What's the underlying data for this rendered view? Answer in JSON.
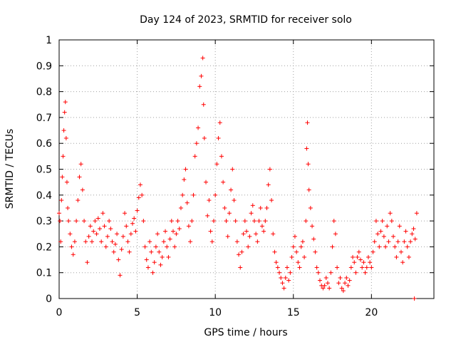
{
  "chart_data": {
    "type": "scatter",
    "title": "Day 124 of 2023, SRMTID for receiver solo",
    "xlabel": "GPS time / hours",
    "ylabel": "SRMTID / TECUs",
    "xlim": [
      0,
      24
    ],
    "ylim": [
      0,
      1
    ],
    "grid": true,
    "marker": "+",
    "marker_color": "#ff0000",
    "x_ticks": [
      {
        "value": 0,
        "label": "0"
      },
      {
        "value": 5,
        "label": "5"
      },
      {
        "value": 10,
        "label": "10"
      },
      {
        "value": 15,
        "label": "15"
      },
      {
        "value": 20,
        "label": "20"
      }
    ],
    "y_ticks": [
      {
        "value": 0,
        "label": "0"
      },
      {
        "value": 0.1,
        "label": "0.1"
      },
      {
        "value": 0.2,
        "label": "0.2"
      },
      {
        "value": 0.3,
        "label": "0.3"
      },
      {
        "value": 0.4,
        "label": "0.4"
      },
      {
        "value": 0.5,
        "label": "0.5"
      },
      {
        "value": 0.6,
        "label": "0.6"
      },
      {
        "value": 0.7,
        "label": "0.7"
      },
      {
        "value": 0.8,
        "label": "0.8"
      },
      {
        "value": 0.9,
        "label": "0.9"
      },
      {
        "value": 1,
        "label": "1"
      }
    ],
    "series": [
      {
        "name": "SRMTID",
        "points": [
          [
            0.0,
            0.33
          ],
          [
            0.05,
            0.3
          ],
          [
            0.1,
            0.22
          ],
          [
            0.15,
            0.38
          ],
          [
            0.2,
            0.47
          ],
          [
            0.25,
            0.55
          ],
          [
            0.3,
            0.65
          ],
          [
            0.35,
            0.72
          ],
          [
            0.4,
            0.76
          ],
          [
            0.45,
            0.62
          ],
          [
            0.5,
            0.45
          ],
          [
            0.55,
            0.35
          ],
          [
            0.6,
            0.3
          ],
          [
            0.7,
            0.25
          ],
          [
            0.8,
            0.2
          ],
          [
            0.9,
            0.17
          ],
          [
            1.0,
            0.22
          ],
          [
            1.1,
            0.3
          ],
          [
            1.2,
            0.38
          ],
          [
            1.3,
            0.47
          ],
          [
            1.4,
            0.52
          ],
          [
            1.5,
            0.42
          ],
          [
            1.6,
            0.3
          ],
          [
            1.7,
            0.22
          ],
          [
            1.8,
            0.14
          ],
          [
            1.9,
            0.24
          ],
          [
            2.0,
            0.28
          ],
          [
            2.1,
            0.22
          ],
          [
            2.2,
            0.26
          ],
          [
            2.3,
            0.3
          ],
          [
            2.4,
            0.25
          ],
          [
            2.5,
            0.31
          ],
          [
            2.6,
            0.27
          ],
          [
            2.7,
            0.22
          ],
          [
            2.8,
            0.33
          ],
          [
            2.9,
            0.28
          ],
          [
            3.0,
            0.2
          ],
          [
            3.1,
            0.24
          ],
          [
            3.2,
            0.3
          ],
          [
            3.3,
            0.27
          ],
          [
            3.4,
            0.22
          ],
          [
            3.5,
            0.18
          ],
          [
            3.6,
            0.21
          ],
          [
            3.7,
            0.25
          ],
          [
            3.8,
            0.15
          ],
          [
            3.9,
            0.09
          ],
          [
            4.0,
            0.19
          ],
          [
            4.1,
            0.24
          ],
          [
            4.2,
            0.33
          ],
          [
            4.3,
            0.28
          ],
          [
            4.4,
            0.22
          ],
          [
            4.5,
            0.18
          ],
          [
            4.6,
            0.25
          ],
          [
            4.7,
            0.29
          ],
          [
            4.8,
            0.31
          ],
          [
            4.9,
            0.26
          ],
          [
            5.0,
            0.34
          ],
          [
            5.1,
            0.39
          ],
          [
            5.2,
            0.44
          ],
          [
            5.3,
            0.4
          ],
          [
            5.4,
            0.3
          ],
          [
            5.5,
            0.2
          ],
          [
            5.6,
            0.15
          ],
          [
            5.7,
            0.12
          ],
          [
            5.8,
            0.22
          ],
          [
            5.9,
            0.18
          ],
          [
            6.0,
            0.1
          ],
          [
            6.1,
            0.14
          ],
          [
            6.2,
            0.2
          ],
          [
            6.3,
            0.25
          ],
          [
            6.4,
            0.18
          ],
          [
            6.5,
            0.13
          ],
          [
            6.6,
            0.16
          ],
          [
            6.7,
            0.22
          ],
          [
            6.8,
            0.26
          ],
          [
            6.9,
            0.2
          ],
          [
            7.0,
            0.16
          ],
          [
            7.1,
            0.23
          ],
          [
            7.2,
            0.3
          ],
          [
            7.3,
            0.26
          ],
          [
            7.4,
            0.2
          ],
          [
            7.5,
            0.25
          ],
          [
            7.6,
            0.3
          ],
          [
            7.7,
            0.27
          ],
          [
            7.8,
            0.35
          ],
          [
            7.9,
            0.4
          ],
          [
            8.0,
            0.46
          ],
          [
            8.1,
            0.5
          ],
          [
            8.2,
            0.37
          ],
          [
            8.3,
            0.28
          ],
          [
            8.4,
            0.22
          ],
          [
            8.5,
            0.3
          ],
          [
            8.6,
            0.4
          ],
          [
            8.7,
            0.55
          ],
          [
            8.8,
            0.6
          ],
          [
            8.9,
            0.66
          ],
          [
            9.0,
            0.82
          ],
          [
            9.1,
            0.86
          ],
          [
            9.2,
            0.93
          ],
          [
            9.25,
            0.75
          ],
          [
            9.3,
            0.62
          ],
          [
            9.4,
            0.45
          ],
          [
            9.5,
            0.32
          ],
          [
            9.6,
            0.38
          ],
          [
            9.7,
            0.26
          ],
          [
            9.8,
            0.22
          ],
          [
            9.9,
            0.3
          ],
          [
            10.0,
            0.4
          ],
          [
            10.1,
            0.52
          ],
          [
            10.2,
            0.62
          ],
          [
            10.3,
            0.68
          ],
          [
            10.4,
            0.55
          ],
          [
            10.5,
            0.45
          ],
          [
            10.6,
            0.35
          ],
          [
            10.7,
            0.3
          ],
          [
            10.8,
            0.24
          ],
          [
            10.9,
            0.33
          ],
          [
            11.0,
            0.42
          ],
          [
            11.1,
            0.5
          ],
          [
            11.2,
            0.38
          ],
          [
            11.3,
            0.3
          ],
          [
            11.4,
            0.22
          ],
          [
            11.5,
            0.17
          ],
          [
            11.6,
            0.12
          ],
          [
            11.7,
            0.18
          ],
          [
            11.8,
            0.25
          ],
          [
            11.9,
            0.3
          ],
          [
            12.0,
            0.26
          ],
          [
            12.1,
            0.2
          ],
          [
            12.2,
            0.24
          ],
          [
            12.3,
            0.33
          ],
          [
            12.4,
            0.36
          ],
          [
            12.5,
            0.3
          ],
          [
            12.6,
            0.25
          ],
          [
            12.7,
            0.22
          ],
          [
            12.8,
            0.3
          ],
          [
            12.9,
            0.35
          ],
          [
            13.0,
            0.28
          ],
          [
            13.1,
            0.26
          ],
          [
            13.2,
            0.3
          ],
          [
            13.3,
            0.35
          ],
          [
            13.4,
            0.44
          ],
          [
            13.5,
            0.5
          ],
          [
            13.6,
            0.38
          ],
          [
            13.7,
            0.25
          ],
          [
            13.8,
            0.18
          ],
          [
            13.9,
            0.14
          ],
          [
            14.0,
            0.12
          ],
          [
            14.1,
            0.1
          ],
          [
            14.2,
            0.08
          ],
          [
            14.3,
            0.06
          ],
          [
            14.4,
            0.04
          ],
          [
            14.5,
            0.08
          ],
          [
            14.6,
            0.12
          ],
          [
            14.7,
            0.07
          ],
          [
            14.8,
            0.1
          ],
          [
            14.9,
            0.16
          ],
          [
            15.0,
            0.2
          ],
          [
            15.1,
            0.24
          ],
          [
            15.2,
            0.18
          ],
          [
            15.3,
            0.14
          ],
          [
            15.4,
            0.12
          ],
          [
            15.5,
            0.2
          ],
          [
            15.6,
            0.22
          ],
          [
            15.7,
            0.16
          ],
          [
            15.8,
            0.3
          ],
          [
            15.85,
            0.58
          ],
          [
            15.9,
            0.68
          ],
          [
            15.95,
            0.52
          ],
          [
            16.0,
            0.42
          ],
          [
            16.1,
            0.35
          ],
          [
            16.2,
            0.28
          ],
          [
            16.3,
            0.23
          ],
          [
            16.4,
            0.18
          ],
          [
            16.5,
            0.12
          ],
          [
            16.6,
            0.1
          ],
          [
            16.7,
            0.07
          ],
          [
            16.8,
            0.05
          ],
          [
            16.9,
            0.04
          ],
          [
            17.0,
            0.05
          ],
          [
            17.1,
            0.08
          ],
          [
            17.2,
            0.06
          ],
          [
            17.3,
            0.04
          ],
          [
            17.4,
            0.1
          ],
          [
            17.5,
            0.2
          ],
          [
            17.6,
            0.3
          ],
          [
            17.7,
            0.25
          ],
          [
            17.8,
            0.12
          ],
          [
            17.9,
            0.06
          ],
          [
            18.0,
            0.08
          ],
          [
            18.1,
            0.04
          ],
          [
            18.2,
            0.03
          ],
          [
            18.3,
            0.06
          ],
          [
            18.4,
            0.08
          ],
          [
            18.5,
            0.05
          ],
          [
            18.6,
            0.07
          ],
          [
            18.7,
            0.12
          ],
          [
            18.8,
            0.16
          ],
          [
            18.9,
            0.14
          ],
          [
            19.0,
            0.1
          ],
          [
            19.1,
            0.16
          ],
          [
            19.2,
            0.18
          ],
          [
            19.3,
            0.15
          ],
          [
            19.4,
            0.12
          ],
          [
            19.5,
            0.14
          ],
          [
            19.6,
            0.1
          ],
          [
            19.7,
            0.12
          ],
          [
            19.8,
            0.16
          ],
          [
            19.9,
            0.14
          ],
          [
            20.0,
            0.12
          ],
          [
            20.1,
            0.18
          ],
          [
            20.2,
            0.22
          ],
          [
            20.3,
            0.3
          ],
          [
            20.4,
            0.25
          ],
          [
            20.5,
            0.2
          ],
          [
            20.6,
            0.26
          ],
          [
            20.7,
            0.3
          ],
          [
            20.8,
            0.24
          ],
          [
            20.9,
            0.2
          ],
          [
            21.0,
            0.28
          ],
          [
            21.1,
            0.22
          ],
          [
            21.2,
            0.33
          ],
          [
            21.3,
            0.3
          ],
          [
            21.4,
            0.24
          ],
          [
            21.5,
            0.2
          ],
          [
            21.6,
            0.16
          ],
          [
            21.7,
            0.22
          ],
          [
            21.8,
            0.28
          ],
          [
            21.9,
            0.18
          ],
          [
            22.0,
            0.14
          ],
          [
            22.1,
            0.22
          ],
          [
            22.2,
            0.26
          ],
          [
            22.3,
            0.2
          ],
          [
            22.4,
            0.16
          ],
          [
            22.5,
            0.22
          ],
          [
            22.6,
            0.25
          ],
          [
            22.7,
            0.27
          ],
          [
            22.75,
            0.0
          ],
          [
            22.8,
            0.23
          ],
          [
            22.9,
            0.33
          ]
        ]
      }
    ]
  }
}
